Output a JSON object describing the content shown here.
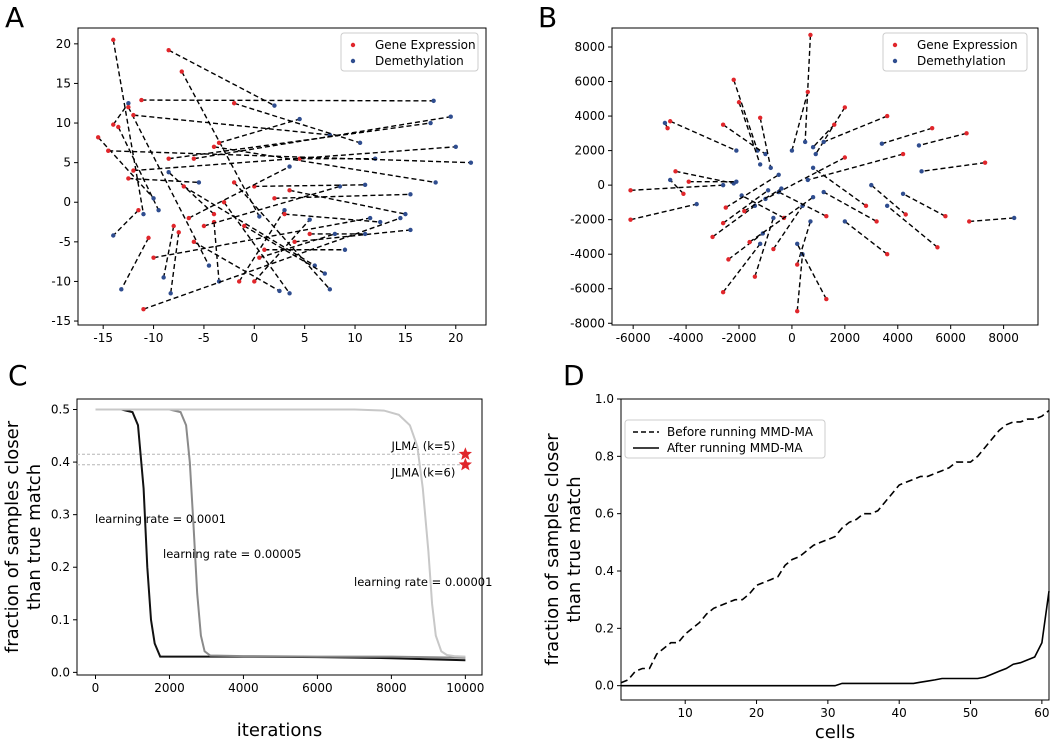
{
  "figure": {
    "panel_labels": [
      "A",
      "B",
      "C",
      "D"
    ]
  },
  "colors": {
    "gene_expression": "#e0262b",
    "demethylation": "#2f4d8f",
    "pair_line": "#000000",
    "lr_0001": "#111111",
    "lr_00005": "#8a8a8a",
    "lr_00001": "#c8c8c8",
    "jlma_star": "#e0262b"
  },
  "chart_data": [
    {
      "panel": "A",
      "type": "scatter",
      "title": "",
      "xlabel": "",
      "ylabel": "",
      "xlim": [
        -17.5,
        23
      ],
      "ylim": [
        -15.5,
        22
      ],
      "xticks": [
        -15,
        -10,
        -5,
        0,
        5,
        10,
        15,
        20
      ],
      "yticks": [
        -15,
        -10,
        -5,
        0,
        5,
        10,
        15,
        20
      ],
      "legend": {
        "position": "top-right",
        "entries": [
          "Gene Expression",
          "Demethylation"
        ]
      },
      "pairs": [
        [
          -14,
          20.5,
          -11,
          -1.5
        ],
        [
          -14,
          9.8,
          -12.5,
          12.5
        ],
        [
          -13.5,
          9.5,
          -9.5,
          -1
        ],
        [
          -15.5,
          8.2,
          -10,
          0.5
        ],
        [
          -12.5,
          3,
          -5.5,
          2.5
        ],
        [
          -12.5,
          12,
          -4.5,
          -8
        ],
        [
          -11.5,
          -1,
          -14,
          -4.2
        ],
        [
          -10.5,
          -4.5,
          -13.2,
          -11
        ],
        [
          -8,
          -3,
          -9,
          -9.5
        ],
        [
          -7.5,
          -3.8,
          -8.3,
          -11.5
        ],
        [
          -8.5,
          19.2,
          2,
          12.2
        ],
        [
          -7.2,
          16.5,
          0.5,
          -1.8
        ],
        [
          -11.2,
          12.9,
          17.8,
          12.8
        ],
        [
          -12,
          11,
          7.5,
          8.5
        ],
        [
          -4,
          -1.5,
          -8.5,
          3.8
        ],
        [
          -4,
          -2.5,
          -3.5,
          -10
        ],
        [
          -3.5,
          7.5,
          4.5,
          10.5
        ],
        [
          -2,
          12.5,
          10.5,
          7.5
        ],
        [
          -1.5,
          -10,
          3,
          -1
        ],
        [
          0,
          -10,
          5.5,
          -2.2
        ],
        [
          -7,
          2,
          6,
          -8
        ],
        [
          -6,
          -5,
          2.5,
          -11.2
        ],
        [
          -5,
          -3,
          8.5,
          2
        ],
        [
          -3,
          0,
          3.5,
          -11.5
        ],
        [
          -2,
          2.5,
          7.5,
          -11
        ],
        [
          -1,
          -3,
          7,
          -9
        ],
        [
          0,
          2,
          11,
          2.2
        ],
        [
          1,
          -6,
          9,
          -6
        ],
        [
          2,
          0.5,
          15.5,
          1
        ],
        [
          3,
          -1.5,
          12.5,
          -2.5
        ],
        [
          3.5,
          1.5,
          15,
          -1.5
        ],
        [
          4,
          -5,
          15.5,
          -3.5
        ],
        [
          4.5,
          5.5,
          12,
          5.5
        ],
        [
          5.5,
          -4,
          11,
          -4
        ],
        [
          -11,
          -13.5,
          14.5,
          -2
        ],
        [
          -14.5,
          6.5,
          21.5,
          5
        ],
        [
          -12,
          4,
          20,
          7
        ],
        [
          -8.5,
          5.5,
          17.5,
          10
        ],
        [
          -6,
          5.5,
          19.5,
          10.8
        ],
        [
          -4,
          7,
          18,
          2.5
        ],
        [
          -10,
          -7,
          11.5,
          -2
        ],
        [
          -6.5,
          -2,
          3.5,
          4.5
        ],
        [
          0.5,
          -7,
          8,
          -4
        ]
      ]
    },
    {
      "panel": "B",
      "type": "scatter",
      "title": "",
      "xlabel": "",
      "ylabel": "",
      "xlim": [
        -6800,
        9300
      ],
      "ylim": [
        -8100,
        9100
      ],
      "xticks": [
        -6000,
        -4000,
        -2000,
        0,
        2000,
        4000,
        6000,
        8000
      ],
      "yticks": [
        -8000,
        -6000,
        -4000,
        -2000,
        0,
        2000,
        4000,
        6000,
        8000
      ],
      "legend": {
        "position": "top-right",
        "entries": [
          "Gene Expression",
          "Demethylation"
        ]
      },
      "pairs": [
        [
          700,
          8700,
          500,
          2500
        ],
        [
          600,
          5400,
          0,
          2000
        ],
        [
          -2200,
          6100,
          -1300,
          2000
        ],
        [
          -2000,
          4800,
          -1200,
          1200
        ],
        [
          -4600,
          3700,
          -2100,
          2000
        ],
        [
          -2600,
          3500,
          -1000,
          1800
        ],
        [
          -1200,
          3900,
          -800,
          1000
        ],
        [
          -4700,
          3300,
          -4800,
          3600
        ],
        [
          -6100,
          -300,
          -2600,
          0
        ],
        [
          -6100,
          -2000,
          -3600,
          -1100
        ],
        [
          -4400,
          800,
          -2200,
          100
        ],
        [
          -4100,
          -500,
          -4600,
          300
        ],
        [
          -3900,
          200,
          -2100,
          200
        ],
        [
          -2600,
          -2200,
          -900,
          -300
        ],
        [
          -2400,
          -4300,
          -1100,
          -2800
        ],
        [
          -2600,
          -6200,
          -1200,
          -3400
        ],
        [
          -1400,
          -5300,
          -700,
          -1900
        ],
        [
          -700,
          -3700,
          400,
          -1200
        ],
        [
          -300,
          -1900,
          -1900,
          -600
        ],
        [
          200,
          -4600,
          700,
          -2100
        ],
        [
          200,
          -7300,
          400,
          -4000
        ],
        [
          1300,
          -6600,
          200,
          -3400
        ],
        [
          2000,
          4500,
          900,
          1800
        ],
        [
          1600,
          3500,
          800,
          2200
        ],
        [
          3600,
          4000,
          1200,
          2500
        ],
        [
          5300,
          3300,
          3400,
          2400
        ],
        [
          6600,
          3000,
          4800,
          2300
        ],
        [
          7300,
          1300,
          4900,
          800
        ],
        [
          5800,
          -1800,
          4200,
          -500
        ],
        [
          4300,
          -1700,
          3000,
          0
        ],
        [
          3600,
          -4000,
          2000,
          -2100
        ],
        [
          3200,
          -2100,
          1200,
          -400
        ],
        [
          6700,
          -2100,
          8400,
          -1900
        ],
        [
          5500,
          -3600,
          3600,
          -1200
        ],
        [
          1300,
          -1800,
          -500,
          -400
        ],
        [
          -2500,
          -1300,
          -500,
          600
        ],
        [
          2000,
          1600,
          -1000,
          -800
        ],
        [
          4200,
          1800,
          600,
          300
        ],
        [
          -1600,
          -3300,
          800,
          -700
        ],
        [
          -3000,
          -3000,
          -1400,
          -1200
        ],
        [
          -1800,
          -1500,
          -400,
          -200
        ],
        [
          2800,
          -1200,
          800,
          1000
        ]
      ]
    },
    {
      "panel": "C",
      "type": "line",
      "title": "",
      "xlabel": "iterations",
      "ylabel": "fraction of samples closer than true match",
      "xlim": [
        -500,
        10450
      ],
      "ylim": [
        -0.005,
        0.52
      ],
      "xticks": [
        0,
        2000,
        4000,
        6000,
        8000,
        10000
      ],
      "yticks": [
        0.0,
        0.1,
        0.2,
        0.3,
        0.4,
        0.5
      ],
      "series": [
        {
          "name": "learning rate = 0.0001",
          "color_key": "lr_0001",
          "x": [
            0,
            700,
            1000,
            1150,
            1300,
            1400,
            1500,
            1600,
            1750,
            2000,
            4000,
            6000,
            8000,
            9000,
            10000
          ],
          "y": [
            0.5,
            0.5,
            0.495,
            0.47,
            0.35,
            0.2,
            0.1,
            0.055,
            0.03,
            0.03,
            0.03,
            0.029,
            0.027,
            0.025,
            0.023
          ]
        },
        {
          "name": "learning rate = 0.00005",
          "color_key": "lr_00005",
          "x": [
            0,
            2000,
            2300,
            2450,
            2550,
            2650,
            2750,
            2850,
            2950,
            3100,
            4000,
            6000,
            8000,
            10000
          ],
          "y": [
            0.5,
            0.5,
            0.495,
            0.47,
            0.4,
            0.28,
            0.15,
            0.07,
            0.04,
            0.032,
            0.031,
            0.03,
            0.03,
            0.028
          ]
        },
        {
          "name": "learning rate = 0.00001",
          "color_key": "lr_00001",
          "x": [
            0,
            7000,
            7800,
            8200,
            8500,
            8700,
            8850,
            9000,
            9100,
            9200,
            9350,
            9500,
            9700,
            10000
          ],
          "y": [
            0.5,
            0.5,
            0.498,
            0.49,
            0.47,
            0.43,
            0.35,
            0.23,
            0.13,
            0.07,
            0.04,
            0.033,
            0.031,
            0.03
          ]
        }
      ],
      "reference_lines": [
        {
          "label": "JLMA (k=5)",
          "y": 0.415,
          "x": 10000
        },
        {
          "label": "JLMA (k=6)",
          "y": 0.395,
          "x": 10000
        }
      ]
    },
    {
      "panel": "D",
      "type": "line",
      "title": "",
      "xlabel": "cells",
      "ylabel": "fraction of samples closer than true match",
      "xlim": [
        1,
        61
      ],
      "ylim": [
        -0.05,
        1.0
      ],
      "xticks": [
        10,
        20,
        30,
        40,
        50,
        60
      ],
      "yticks": [
        0.0,
        0.2,
        0.4,
        0.6,
        0.8,
        1.0
      ],
      "legend": {
        "position": "top-left",
        "entries": [
          "Before running MMD-MA",
          "After running MMD-MA"
        ]
      },
      "series": [
        {
          "name": "Before running MMD-MA",
          "style": "dashed",
          "x": [
            1,
            2,
            3,
            4,
            5,
            6,
            7,
            8,
            9,
            10,
            11,
            12,
            13,
            14,
            15,
            16,
            17,
            18,
            19,
            20,
            21,
            22,
            23,
            24,
            25,
            26,
            27,
            28,
            29,
            30,
            31,
            32,
            33,
            34,
            35,
            36,
            37,
            38,
            39,
            40,
            41,
            42,
            43,
            44,
            45,
            46,
            47,
            48,
            49,
            50,
            51,
            52,
            53,
            54,
            55,
            56,
            57,
            58,
            59,
            60,
            61
          ],
          "y": [
            0.01,
            0.02,
            0.05,
            0.06,
            0.06,
            0.11,
            0.13,
            0.15,
            0.15,
            0.18,
            0.2,
            0.22,
            0.25,
            0.27,
            0.28,
            0.29,
            0.3,
            0.3,
            0.32,
            0.35,
            0.36,
            0.37,
            0.38,
            0.42,
            0.44,
            0.45,
            0.47,
            0.49,
            0.5,
            0.51,
            0.52,
            0.55,
            0.57,
            0.58,
            0.6,
            0.6,
            0.61,
            0.64,
            0.67,
            0.7,
            0.71,
            0.72,
            0.73,
            0.73,
            0.74,
            0.75,
            0.76,
            0.78,
            0.78,
            0.78,
            0.8,
            0.83,
            0.86,
            0.89,
            0.91,
            0.92,
            0.92,
            0.93,
            0.93,
            0.94,
            0.96
          ]
        },
        {
          "name": "After running MMD-MA",
          "style": "solid",
          "x": [
            1,
            31,
            32,
            42,
            43,
            44,
            45,
            46,
            50,
            51,
            52,
            53,
            54,
            55,
            56,
            57,
            58,
            59,
            60,
            61
          ],
          "y": [
            0,
            0,
            0.008,
            0.008,
            0.012,
            0.016,
            0.02,
            0.025,
            0.025,
            0.025,
            0.03,
            0.04,
            0.05,
            0.06,
            0.075,
            0.08,
            0.09,
            0.1,
            0.15,
            0.33
          ]
        }
      ]
    }
  ]
}
